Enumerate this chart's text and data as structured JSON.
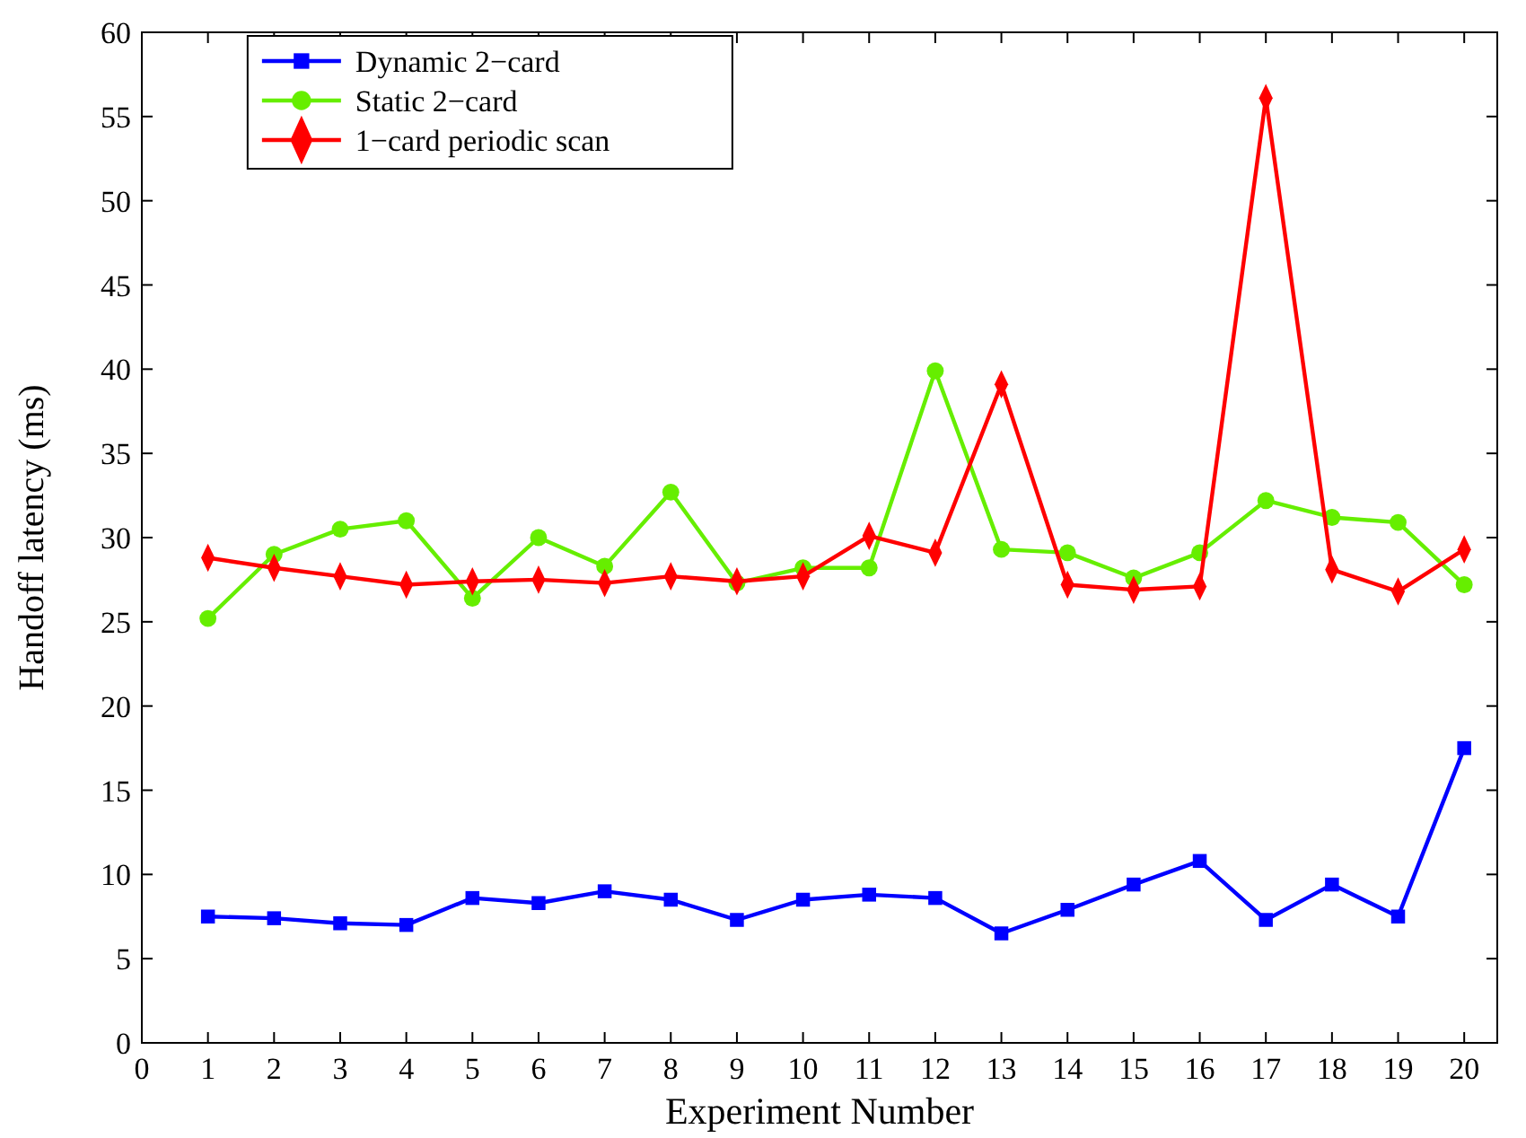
{
  "chart_data": {
    "type": "line",
    "xlabel": "Experiment Number",
    "ylabel": "Handoff latency (ms)",
    "x": [
      1,
      2,
      3,
      4,
      5,
      6,
      7,
      8,
      9,
      10,
      11,
      12,
      13,
      14,
      15,
      16,
      17,
      18,
      19,
      20
    ],
    "series": [
      {
        "name": "Dynamic 2−card",
        "color": "#0000ff",
        "marker": "square",
        "values": [
          7.5,
          7.4,
          7.1,
          7.0,
          8.6,
          8.3,
          9.0,
          8.5,
          7.3,
          8.5,
          8.8,
          8.6,
          6.5,
          7.9,
          9.4,
          10.8,
          7.3,
          9.4,
          7.5,
          17.5
        ]
      },
      {
        "name": "Static 2−card",
        "color": "#66ee00",
        "marker": "circle",
        "values": [
          25.2,
          29.0,
          30.5,
          31.0,
          26.4,
          30.0,
          28.3,
          32.7,
          27.3,
          28.2,
          28.2,
          39.9,
          29.3,
          29.1,
          27.6,
          29.1,
          32.2,
          31.2,
          30.9,
          27.2
        ]
      },
      {
        "name": "1−card periodic scan",
        "color": "#ff0000",
        "marker": "diamond",
        "values": [
          28.8,
          28.2,
          27.7,
          27.2,
          27.4,
          27.5,
          27.3,
          27.7,
          27.4,
          27.7,
          30.1,
          29.1,
          39.1,
          27.2,
          26.9,
          27.1,
          56.1,
          28.1,
          26.8,
          29.3
        ]
      }
    ],
    "xlim": [
      0,
      20.5
    ],
    "xticks": [
      0,
      1,
      2,
      3,
      4,
      5,
      6,
      7,
      8,
      9,
      10,
      11,
      12,
      13,
      14,
      15,
      16,
      17,
      18,
      19,
      20
    ],
    "ylim": [
      0,
      60
    ],
    "yticks": [
      0,
      5,
      10,
      15,
      20,
      25,
      30,
      35,
      40,
      45,
      50,
      55,
      60
    ],
    "grid": false,
    "legend": "top left",
    "line_style": "solid"
  }
}
